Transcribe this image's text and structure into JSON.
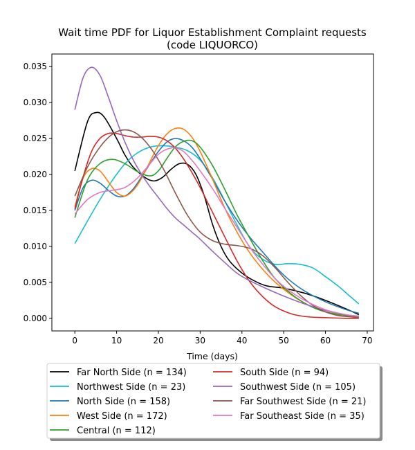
{
  "chart_data": {
    "type": "line",
    "title_line1": "Wait time PDF for Liquor Establishment Complaint  requests",
    "title_line2": "(code LIQUORCO)",
    "xlabel": "Time (days)",
    "ylabel": "",
    "xlim": [
      -5.5,
      71.5
    ],
    "ylim": [
      -0.00175,
      0.03675
    ],
    "xticks": [
      0,
      10,
      20,
      30,
      40,
      50,
      60,
      70
    ],
    "yticks": [
      0.0,
      0.005,
      0.01,
      0.015,
      0.02,
      0.025,
      0.03,
      0.035
    ],
    "ytick_labels": [
      "0.000",
      "0.005",
      "0.010",
      "0.015",
      "0.020",
      "0.025",
      "0.030",
      "0.035"
    ],
    "grid": false,
    "legend_placement": "below-center",
    "series": [
      {
        "name": "Far North Side (n = 134)",
        "color": "#000000",
        "x": [
          0,
          3,
          5,
          7,
          10,
          12,
          14,
          17,
          19,
          21,
          23,
          25,
          27,
          29,
          31,
          33,
          35,
          37,
          40,
          43,
          46,
          50,
          55,
          60,
          65,
          68
        ],
        "y": [
          0.0205,
          0.0273,
          0.0286,
          0.028,
          0.025,
          0.0227,
          0.021,
          0.0195,
          0.0191,
          0.0196,
          0.0207,
          0.0215,
          0.0214,
          0.02,
          0.017,
          0.013,
          0.01,
          0.008,
          0.0063,
          0.0052,
          0.0045,
          0.0042,
          0.0035,
          0.0025,
          0.0013,
          0.0005
        ]
      },
      {
        "name": "Northwest Side (n = 23)",
        "color": "#17becf",
        "x": [
          0,
          3,
          6,
          9,
          12,
          15,
          18,
          21,
          24,
          27,
          30,
          33,
          36,
          39,
          42,
          45,
          48,
          51,
          54,
          57,
          60,
          63,
          66,
          68
        ],
        "y": [
          0.0104,
          0.0135,
          0.0165,
          0.0192,
          0.0215,
          0.023,
          0.0238,
          0.024,
          0.0238,
          0.0233,
          0.022,
          0.0195,
          0.0162,
          0.0128,
          0.0098,
          0.0082,
          0.0075,
          0.0076,
          0.0075,
          0.007,
          0.0058,
          0.0045,
          0.003,
          0.002
        ]
      },
      {
        "name": "North Side (n = 158)",
        "color": "#1f77b4",
        "x": [
          0,
          2,
          4,
          6,
          8,
          10,
          12,
          14,
          16,
          18,
          20,
          22,
          24,
          26,
          28,
          30,
          33,
          36,
          39,
          42,
          45,
          48,
          51,
          55,
          60,
          65,
          68
        ],
        "y": [
          0.015,
          0.0182,
          0.0192,
          0.0188,
          0.0178,
          0.017,
          0.017,
          0.018,
          0.0197,
          0.0215,
          0.0232,
          0.0245,
          0.025,
          0.0247,
          0.0238,
          0.0222,
          0.0193,
          0.0162,
          0.0135,
          0.0112,
          0.0092,
          0.0072,
          0.0055,
          0.0038,
          0.0023,
          0.0012,
          0.0007
        ]
      },
      {
        "name": "West Side (n = 172)",
        "color": "#ff7f0e",
        "x": [
          0,
          2,
          4,
          6,
          8,
          10,
          12,
          14,
          16,
          18,
          20,
          22,
          24,
          26,
          28,
          30,
          33,
          36,
          39,
          42,
          45,
          48,
          52,
          56,
          60,
          65,
          68
        ],
        "y": [
          0.0155,
          0.0195,
          0.0208,
          0.0205,
          0.019,
          0.0175,
          0.017,
          0.0178,
          0.0195,
          0.0218,
          0.024,
          0.0256,
          0.0264,
          0.0263,
          0.0252,
          0.0232,
          0.0193,
          0.0152,
          0.0118,
          0.009,
          0.0068,
          0.005,
          0.0032,
          0.0018,
          0.0009,
          0.0004,
          0.0002
        ]
      },
      {
        "name": "Central (n = 112)",
        "color": "#2ca02c",
        "x": [
          0,
          3,
          6,
          9,
          12,
          15,
          18,
          20,
          22,
          24,
          26,
          28,
          30,
          33,
          36,
          39,
          42,
          45,
          48,
          52,
          56,
          60,
          65,
          68
        ],
        "y": [
          0.014,
          0.0192,
          0.0215,
          0.0221,
          0.0215,
          0.0204,
          0.0198,
          0.0205,
          0.0222,
          0.0238,
          0.0246,
          0.0247,
          0.0238,
          0.0212,
          0.0178,
          0.0142,
          0.011,
          0.008,
          0.0055,
          0.0033,
          0.0018,
          0.0009,
          0.0004,
          0.0002
        ]
      },
      {
        "name": "South Side (n = 94)",
        "color": "#d62728",
        "x": [
          0,
          2,
          4,
          6,
          8,
          10,
          12,
          14,
          16,
          18,
          20,
          22,
          24,
          26,
          28,
          30,
          33,
          36,
          39,
          42,
          45,
          48,
          52,
          56,
          60,
          65,
          68
        ],
        "y": [
          0.0152,
          0.0197,
          0.0232,
          0.025,
          0.0257,
          0.0257,
          0.0254,
          0.0252,
          0.0252,
          0.0253,
          0.0252,
          0.0247,
          0.0237,
          0.0222,
          0.0203,
          0.0182,
          0.0147,
          0.0112,
          0.0078,
          0.005,
          0.003,
          0.0016,
          0.0006,
          0.0002,
          0.0001,
          0.0,
          0.0
        ]
      },
      {
        "name": "Southwest Side (n = 105)",
        "color": "#9467bd",
        "x": [
          0,
          2,
          4,
          6,
          8,
          10,
          12,
          14,
          16,
          18,
          20,
          22,
          24,
          26,
          28,
          30,
          33,
          36,
          39,
          42,
          46,
          50,
          55,
          60,
          65,
          68
        ],
        "y": [
          0.029,
          0.0335,
          0.0349,
          0.0338,
          0.0308,
          0.0275,
          0.0245,
          0.022,
          0.02,
          0.0183,
          0.0168,
          0.0153,
          0.014,
          0.013,
          0.012,
          0.011,
          0.0093,
          0.0077,
          0.0062,
          0.0052,
          0.0041,
          0.0031,
          0.002,
          0.0011,
          0.0005,
          0.0003
        ]
      },
      {
        "name": "Far Southwest Side (n = 21)",
        "color": "#8c564b",
        "x": [
          0,
          3,
          6,
          9,
          12,
          15,
          18,
          21,
          24,
          27,
          30,
          33,
          36,
          39,
          42,
          45,
          48,
          51,
          54,
          57,
          60,
          63,
          66,
          68
        ],
        "y": [
          0.017,
          0.021,
          0.0238,
          0.0256,
          0.0262,
          0.0256,
          0.0238,
          0.021,
          0.0175,
          0.0143,
          0.012,
          0.0108,
          0.0103,
          0.0101,
          0.0097,
          0.0087,
          0.007,
          0.005,
          0.0032,
          0.0018,
          0.0009,
          0.0004,
          0.0002,
          0.0001
        ]
      },
      {
        "name": "Far Southeast Side (n = 35)",
        "color": "#e377c2",
        "x": [
          0,
          3,
          6,
          9,
          12,
          15,
          18,
          20,
          22,
          24,
          26,
          28,
          30,
          33,
          36,
          39,
          42,
          45,
          48,
          51,
          55,
          60,
          65,
          68
        ],
        "y": [
          0.0145,
          0.0165,
          0.0175,
          0.0178,
          0.0182,
          0.0195,
          0.0215,
          0.0228,
          0.0235,
          0.0237,
          0.0232,
          0.022,
          0.0205,
          0.018,
          0.0152,
          0.0125,
          0.0098,
          0.0075,
          0.0055,
          0.004,
          0.0025,
          0.0012,
          0.0005,
          0.0003
        ]
      }
    ]
  }
}
